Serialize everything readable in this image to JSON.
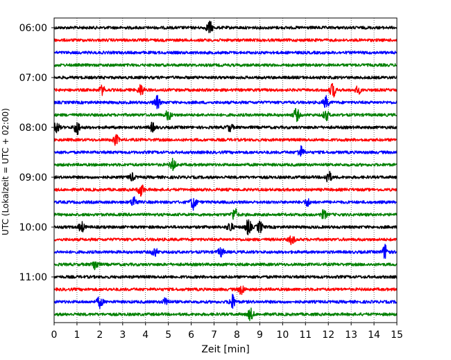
{
  "chart_data": {
    "type": "line",
    "title": "",
    "xlabel": "Zeit  [min]",
    "ylabel": "UTC (Lokalzeit = UTC + 02:00)",
    "xlim": [
      0,
      15
    ],
    "x_ticks": [
      0,
      1,
      2,
      3,
      4,
      5,
      6,
      7,
      8,
      9,
      10,
      11,
      12,
      13,
      14,
      15
    ],
    "y_tick_labels": [
      "06:00",
      "07:00",
      "08:00",
      "09:00",
      "10:00",
      "11:00"
    ],
    "grid": {
      "x": true,
      "y": false,
      "style": "dotted"
    },
    "trace_interval_minutes": 15,
    "color_cycle": [
      "#000000",
      "#ff0000",
      "#0000ff",
      "#008000"
    ],
    "traces": [
      {
        "start": "06:00",
        "color": "#000000",
        "events": [
          [
            6.8,
            9
          ]
        ]
      },
      {
        "start": "06:15",
        "color": "#ff0000",
        "events": []
      },
      {
        "start": "06:30",
        "color": "#0000ff",
        "events": []
      },
      {
        "start": "06:45",
        "color": "#008000",
        "events": []
      },
      {
        "start": "07:00",
        "color": "#000000",
        "events": []
      },
      {
        "start": "07:15",
        "color": "#ff0000",
        "events": [
          [
            2.1,
            6
          ],
          [
            3.8,
            8
          ],
          [
            12.2,
            10
          ],
          [
            13.3,
            5
          ]
        ]
      },
      {
        "start": "07:30",
        "color": "#0000ff",
        "events": [
          [
            4.5,
            9
          ],
          [
            11.9,
            8
          ]
        ]
      },
      {
        "start": "07:45",
        "color": "#008000",
        "events": [
          [
            5.0,
            7
          ],
          [
            10.6,
            9
          ],
          [
            11.9,
            7
          ]
        ]
      },
      {
        "start": "08:00",
        "color": "#000000",
        "events": [
          [
            0.1,
            8
          ],
          [
            1.0,
            10
          ],
          [
            4.3,
            6
          ],
          [
            7.7,
            5
          ]
        ]
      },
      {
        "start": "08:15",
        "color": "#ff0000",
        "events": [
          [
            2.7,
            7
          ]
        ]
      },
      {
        "start": "08:30",
        "color": "#0000ff",
        "events": [
          [
            10.8,
            8
          ]
        ]
      },
      {
        "start": "08:45",
        "color": "#008000",
        "events": [
          [
            5.2,
            8
          ]
        ]
      },
      {
        "start": "09:00",
        "color": "#000000",
        "events": [
          [
            3.4,
            5
          ],
          [
            12.0,
            9
          ]
        ]
      },
      {
        "start": "09:15",
        "color": "#ff0000",
        "events": [
          [
            3.8,
            9
          ]
        ]
      },
      {
        "start": "09:30",
        "color": "#0000ff",
        "events": [
          [
            3.5,
            8
          ],
          [
            6.1,
            10
          ],
          [
            11.1,
            5
          ]
        ]
      },
      {
        "start": "09:45",
        "color": "#008000",
        "events": [
          [
            7.9,
            9
          ],
          [
            11.8,
            6
          ]
        ]
      },
      {
        "start": "10:00",
        "color": "#000000",
        "events": [
          [
            1.2,
            7
          ],
          [
            7.7,
            7
          ],
          [
            8.5,
            11
          ],
          [
            9.0,
            8
          ]
        ]
      },
      {
        "start": "10:15",
        "color": "#ff0000",
        "events": [
          [
            10.4,
            6
          ]
        ]
      },
      {
        "start": "10:30",
        "color": "#0000ff",
        "events": [
          [
            4.4,
            6
          ],
          [
            7.3,
            6
          ],
          [
            14.5,
            11
          ]
        ]
      },
      {
        "start": "10:45",
        "color": "#008000",
        "events": [
          [
            1.8,
            8
          ]
        ]
      },
      {
        "start": "11:00",
        "color": "#000000",
        "events": []
      },
      {
        "start": "11:15",
        "color": "#ff0000",
        "events": [
          [
            8.2,
            7
          ]
        ]
      },
      {
        "start": "11:30",
        "color": "#0000ff",
        "events": [
          [
            2.0,
            8
          ],
          [
            4.9,
            6
          ],
          [
            7.8,
            10
          ]
        ]
      },
      {
        "start": "11:45",
        "color": "#008000",
        "events": [
          [
            8.6,
            8
          ]
        ]
      }
    ]
  }
}
